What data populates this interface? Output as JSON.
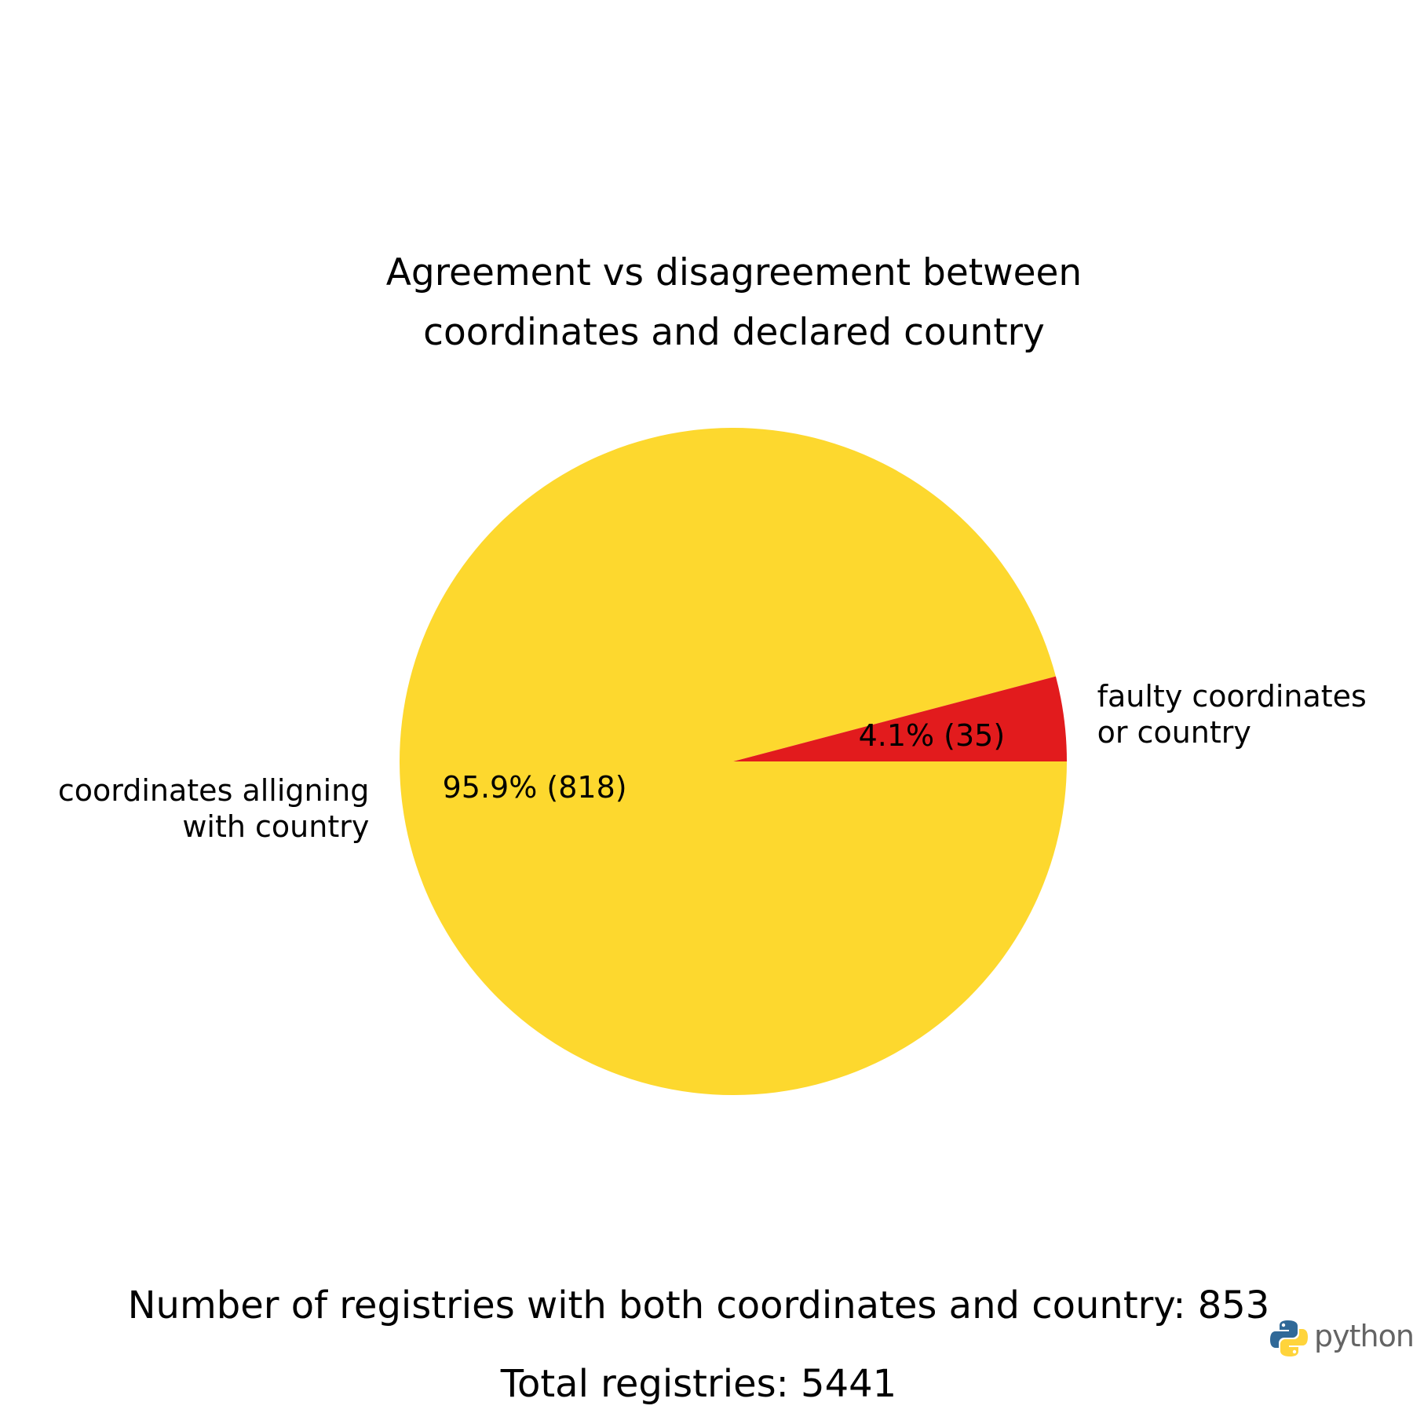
{
  "chart_data": {
    "type": "pie",
    "title_lines": [
      "Agreement vs disagreement between",
      "coordinates and declared country"
    ],
    "slices": [
      {
        "label_lines": [
          "coordinates alligning",
          "with country"
        ],
        "value": 818,
        "percent": 95.9,
        "autopct": "95.9% (818)",
        "color": "#FDD82E"
      },
      {
        "label_lines": [
          "faulty coordinates",
          "or country"
        ],
        "value": 35,
        "percent": 4.1,
        "autopct": "4.1% (35)",
        "color": "#E21B1D"
      }
    ],
    "start_angle_deg": 0,
    "direction": "clockwise"
  },
  "summary_text": "Number of registries with both coordinates and country: 853",
  "total_text": "Total registries: 5441",
  "logo": {
    "icon": "python-logo-icon",
    "word": "python",
    "colors": [
      "#306998",
      "#FFD43B"
    ]
  }
}
